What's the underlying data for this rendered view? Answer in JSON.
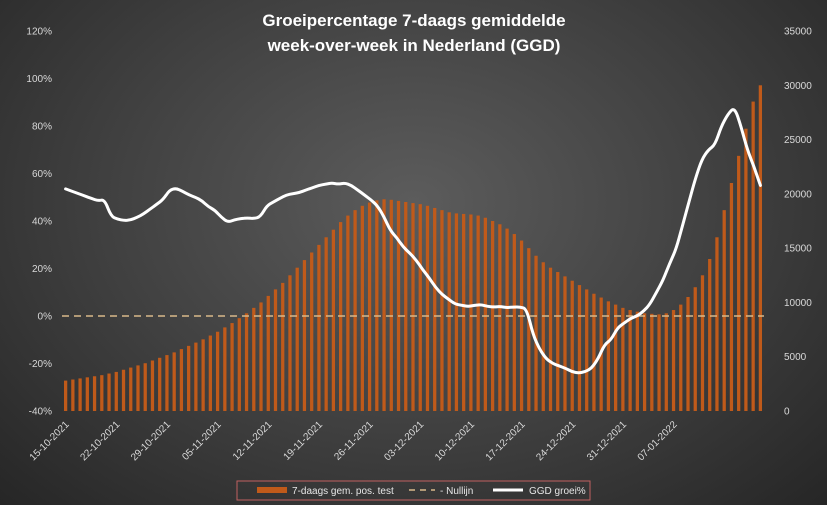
{
  "chart_data": {
    "type": "bar+line",
    "title_lines": [
      "Groeipercentage 7-daags gemiddelde",
      "week-over-week in Nederland (GGD)"
    ],
    "y_left": {
      "ticks": [
        "-40%",
        "-20%",
        "0%",
        "20%",
        "40%",
        "60%",
        "80%",
        "100%",
        "120%"
      ],
      "range": [
        -40,
        120
      ]
    },
    "y_right": {
      "ticks": [
        "0",
        "5000",
        "10000",
        "15000",
        "20000",
        "25000",
        "30000",
        "35000"
      ],
      "range": [
        0,
        35000
      ]
    },
    "x_tick_labels": [
      "15-10-2021",
      "22-10-2021",
      "29-10-2021",
      "05-11-2021",
      "12-11-2021",
      "19-11-2021",
      "26-11-2021",
      "03-12-2021",
      "10-12-2021",
      "17-12-2021",
      "24-12-2021",
      "31-12-2021",
      "07-01-2022"
    ],
    "legend": [
      "7-daags gem. pos. test",
      "- Nullijn",
      "GGD groei%"
    ],
    "series": [
      {
        "name": "7-daags gem. pos. test",
        "kind": "bar",
        "axis": "right",
        "color": "#c05a1a",
        "values": [
          2800,
          2900,
          3000,
          3100,
          3200,
          3300,
          3450,
          3600,
          3800,
          4000,
          4200,
          4400,
          4650,
          4900,
          5150,
          5400,
          5700,
          6000,
          6300,
          6600,
          6950,
          7300,
          7700,
          8100,
          8550,
          9000,
          9500,
          10000,
          10600,
          11200,
          11800,
          12500,
          13200,
          13900,
          14600,
          15300,
          16000,
          16700,
          17400,
          18000,
          18500,
          18900,
          19200,
          19400,
          19500,
          19450,
          19350,
          19250,
          19150,
          19050,
          18900,
          18700,
          18500,
          18300,
          18200,
          18150,
          18100,
          18000,
          17800,
          17500,
          17200,
          16800,
          16300,
          15700,
          15000,
          14300,
          13700,
          13200,
          12800,
          12400,
          12000,
          11600,
          11200,
          10800,
          10450,
          10100,
          9800,
          9500,
          9300,
          9150,
          9000,
          8950,
          8900,
          9000,
          9300,
          9800,
          10500,
          11400,
          12500,
          14000,
          16000,
          18500,
          21000,
          23500,
          26000,
          28500,
          30000
        ]
      },
      {
        "name": "Nullijn",
        "kind": "line",
        "axis": "left",
        "dashed": true,
        "color": "#d9b98a",
        "value": 0
      },
      {
        "name": "GGD groei%",
        "kind": "line",
        "axis": "left",
        "color": "#ffffff",
        "values": [
          53.5,
          52.5,
          51.5,
          50.5,
          49.5,
          48.5,
          49,
          42,
          40.8,
          40.2,
          40.4,
          41.5,
          43,
          45,
          47,
          49,
          53,
          53.8,
          52.5,
          51,
          50,
          48.5,
          46,
          44.5,
          41.5,
          39.5,
          40.5,
          41,
          41.3,
          41,
          41.8,
          46.5,
          48,
          49.5,
          51,
          51.5,
          52,
          53,
          54,
          55,
          55.5,
          56,
          55.5,
          56,
          55,
          53,
          51,
          49,
          46.5,
          42,
          36,
          33,
          29,
          26.5,
          23.5,
          19.5,
          16,
          12,
          9,
          7,
          5,
          4.5,
          4,
          4.5,
          4.8,
          4,
          3.8,
          4,
          3.5,
          3.8,
          3.8,
          3,
          -8,
          -14,
          -18,
          -20,
          -21,
          -22,
          -23.5,
          -24,
          -23.5,
          -22,
          -18,
          -12,
          -10,
          -5,
          -3,
          -1,
          0,
          2,
          5,
          10,
          15,
          22,
          28,
          38,
          48,
          58,
          66,
          70,
          72,
          80,
          85,
          88,
          80,
          70,
          63,
          55
        ]
      }
    ]
  }
}
